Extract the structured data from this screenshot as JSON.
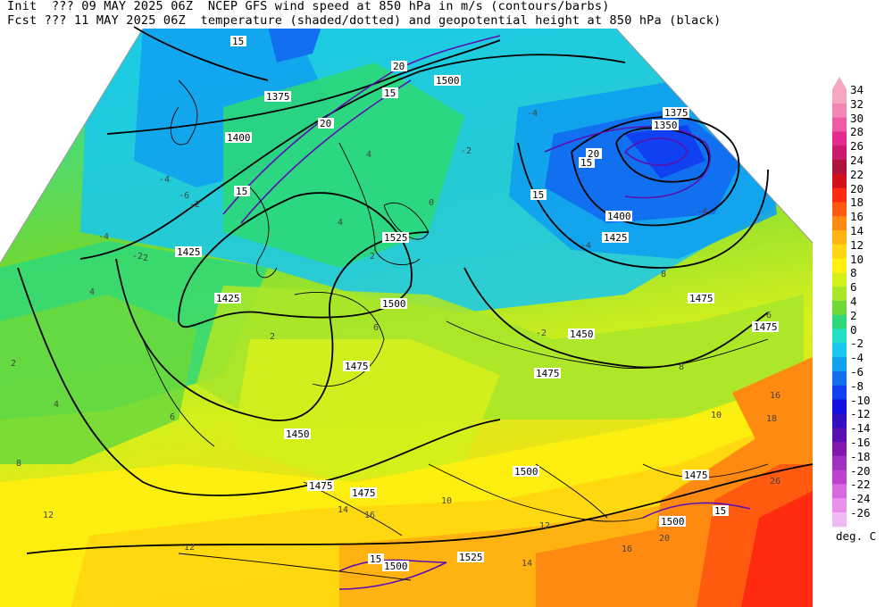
{
  "header": {
    "line1": "Init  ??? 09 MAY 2025 06Z  NCEP GFS wind speed at 850 hPa in m/s (contours/barbs)",
    "line2": "Fcst ??? 11 MAY 2025 06Z  temperature (shaded/dotted) and geopotential height at 850 hPa (black)"
  },
  "colorbar": {
    "units": "deg. C",
    "levels": [
      {
        "label": "34",
        "color": "#f7a8c0"
      },
      {
        "label": "32",
        "color": "#f486b4"
      },
      {
        "label": "30",
        "color": "#ef5aa5"
      },
      {
        "label": "28",
        "color": "#e52a8f"
      },
      {
        "label": "26",
        "color": "#cc1a6c"
      },
      {
        "label": "24",
        "color": "#b0123e"
      },
      {
        "label": "22",
        "color": "#d2101a"
      },
      {
        "label": "20",
        "color": "#ff2a10"
      },
      {
        "label": "18",
        "color": "#ff5a10"
      },
      {
        "label": "16",
        "color": "#ff8a12"
      },
      {
        "label": "14",
        "color": "#ffb210"
      },
      {
        "label": "12",
        "color": "#ffd610"
      },
      {
        "label": "10",
        "color": "#fff010"
      },
      {
        "label": "8",
        "color": "#d4f01c"
      },
      {
        "label": "6",
        "color": "#a8e62a"
      },
      {
        "label": "4",
        "color": "#6cd83a"
      },
      {
        "label": "2",
        "color": "#2ed878"
      },
      {
        "label": "0",
        "color": "#20e0c8"
      },
      {
        "label": "-2",
        "color": "#18c8f0"
      },
      {
        "label": "-4",
        "color": "#10a0f0"
      },
      {
        "label": "-6",
        "color": "#1070f0"
      },
      {
        "label": "-8",
        "color": "#1040f0"
      },
      {
        "label": "-10",
        "color": "#1010e0"
      },
      {
        "label": "-12",
        "color": "#3010c0"
      },
      {
        "label": "-14",
        "color": "#5a10b0"
      },
      {
        "label": "-16",
        "color": "#8018b0"
      },
      {
        "label": "-18",
        "color": "#a030c0"
      },
      {
        "label": "-20",
        "color": "#c040d0"
      },
      {
        "label": "-22",
        "color": "#d868e0"
      },
      {
        "label": "-24",
        "color": "#e890ec"
      },
      {
        "label": "-26",
        "color": "#f0b8f4"
      }
    ]
  },
  "height_labels": [
    "1375",
    "1400",
    "1425",
    "1425",
    "1450",
    "1475",
    "1500",
    "1525",
    "1500",
    "1375",
    "1350",
    "1400",
    "1425",
    "1450",
    "1475",
    "1475",
    "1500",
    "1475",
    "1475",
    "1475",
    "1500",
    "1500",
    "1525",
    "1475",
    "1500"
  ],
  "wind_labels": [
    "15",
    "20",
    "15",
    "20",
    "15",
    "20",
    "15",
    "15",
    "15",
    "20",
    "15",
    "15"
  ],
  "temp_labels": [
    "-4",
    "-4",
    "-6",
    "-2",
    "2",
    "4",
    "2",
    "6",
    "4",
    "8",
    "-2",
    "-2",
    "0",
    "-4",
    "-4",
    "-4",
    "2",
    "6",
    "8",
    "10",
    "10",
    "12",
    "14",
    "12",
    "16",
    "16",
    "18",
    "20",
    "26",
    "16",
    "14",
    "12",
    "8",
    "6",
    "4",
    "4",
    "2",
    "-2"
  ]
}
